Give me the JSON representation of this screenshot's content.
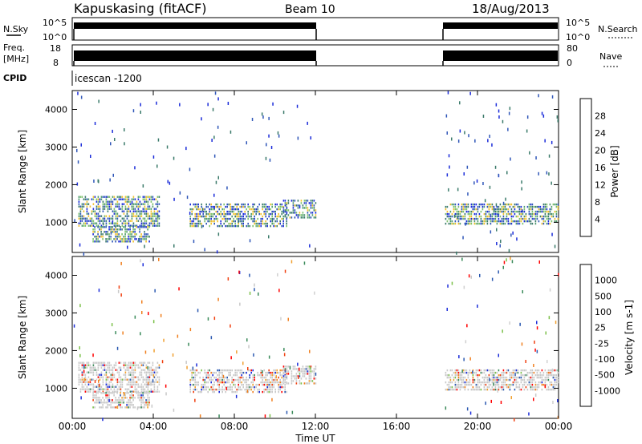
{
  "header": {
    "station": "Kapuskasing (fitACF)",
    "beam": "Beam 10",
    "date": "18/Aug/2013"
  },
  "strip_labels": {
    "nsky": "N.Sky",
    "nsky_ticks": [
      "10^5",
      "10^0"
    ],
    "nsearch": "N.Search",
    "nsearch_ticks": [
      "10^5",
      "10^0"
    ],
    "freq_top": "Freq.",
    "freq_unit": "[MHz]",
    "freq_ticks": [
      "18",
      "8"
    ],
    "nave": "Nave",
    "nave_ticks": [
      "80",
      "0"
    ],
    "cpid": "CPID",
    "cpid_value": "icescan -1200"
  },
  "colors": {
    "power_scale": [
      "#1a2bd9",
      "#2f56b8",
      "#3a7a6a",
      "#4e9a6e",
      "#7cc06a",
      "#f0c02a",
      "#f0a020",
      "#f07018",
      "#e03010",
      "#ff0000"
    ],
    "velocity_scale": [
      "#ff0000",
      "#f04010",
      "#f08020",
      "#f0a030",
      "#d0d0d0",
      "#c8c8c8",
      "#7cc04a",
      "#3a8a5a",
      "#2a58b0",
      "#1a2bd9"
    ]
  },
  "chart_data": [
    {
      "type": "heatmap",
      "panel": "power",
      "ylabel": "Slant Range [km]",
      "ylim": [
        200,
        4500
      ],
      "yticks": [
        "1000",
        "2000",
        "3000",
        "4000"
      ],
      "xlim": [
        "00:00",
        "24:00"
      ],
      "colorbar": {
        "label": "Power [dB]",
        "ticks": [
          "4",
          "8",
          "12",
          "16",
          "20",
          "24",
          "28"
        ],
        "range": [
          0,
          30
        ]
      },
      "regions": [
        {
          "t0": 0.3,
          "t1": 4.3,
          "r0": 900,
          "r1": 1700,
          "value": 10
        },
        {
          "t0": 1.0,
          "t1": 3.8,
          "r0": 500,
          "r1": 900,
          "value": 14
        },
        {
          "t0": 5.8,
          "t1": 10.6,
          "r0": 900,
          "r1": 1500,
          "value": 16
        },
        {
          "t0": 10.4,
          "t1": 12.0,
          "r0": 1150,
          "r1": 1600,
          "value": 10
        },
        {
          "t0": 18.4,
          "t1": 24.0,
          "r0": 950,
          "r1": 1500,
          "value": 9
        }
      ]
    },
    {
      "type": "heatmap",
      "panel": "velocity",
      "ylabel": "Slant Range [km]",
      "ylim": [
        200,
        4500
      ],
      "yticks": [
        "1000",
        "2000",
        "3000",
        "4000"
      ],
      "xlim": [
        "00:00",
        "24:00"
      ],
      "colorbar": {
        "label": "Velocity [m s-1]",
        "ticks": [
          "1000",
          "500",
          "100",
          "25",
          "-25",
          "-100",
          "-500",
          "-1000"
        ]
      },
      "regions": [
        {
          "t0": 0.3,
          "t1": 4.3,
          "r0": 900,
          "r1": 1700,
          "value": 0
        },
        {
          "t0": 1.0,
          "t1": 3.8,
          "r0": 500,
          "r1": 900,
          "value": -100
        },
        {
          "t0": 5.8,
          "t1": 10.6,
          "r0": 900,
          "r1": 1500,
          "value": 100
        },
        {
          "t0": 10.4,
          "t1": 12.0,
          "r0": 1150,
          "r1": 1600,
          "value": 0
        },
        {
          "t0": 18.4,
          "t1": 24.0,
          "r0": 950,
          "r1": 1500,
          "value": 0
        }
      ]
    }
  ],
  "xaxis": {
    "ticks": [
      "00:00",
      "04:00",
      "08:00",
      "12:00",
      "16:00",
      "20:00",
      "00:00"
    ],
    "label": "Time UT"
  }
}
